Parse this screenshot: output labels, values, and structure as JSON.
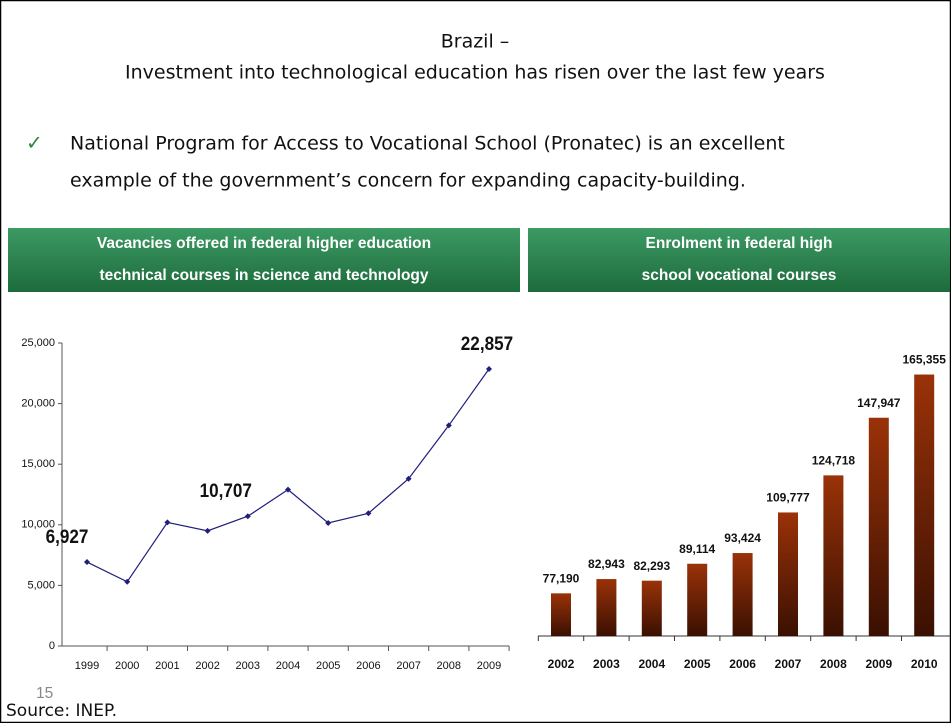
{
  "header": {
    "title_lines": [
      "Brazil –",
      "Investment into technological education has risen over the last few years"
    ]
  },
  "bullet": {
    "lines": [
      "National Program for Access to Vocational School (Pronatec) is an excellent",
      "example of the government’s concern for expanding capacity-building."
    ]
  },
  "chart_data": [
    {
      "type": "line",
      "title": "Vacancies offered in federal higher education technical courses in science and technology",
      "categories": [
        "1999",
        "2000",
        "2001",
        "2002",
        "2003",
        "2004",
        "2005",
        "2006",
        "2007",
        "2008",
        "2009"
      ],
      "values": [
        6927,
        5300,
        10200,
        9500,
        10707,
        12900,
        10150,
        10950,
        13800,
        18200,
        22857
      ],
      "value_labels": [
        "6,927",
        null,
        null,
        null,
        "10,707",
        null,
        null,
        null,
        null,
        null,
        "22,857"
      ],
      "color": "#1f1f7a",
      "ylim": [
        0,
        25000
      ],
      "yticks": [
        0,
        {
          "value": 5000,
          "label": "5,000"
        },
        {
          "value": 10000,
          "label": "10,000"
        },
        {
          "value": 15000,
          "label": "15,000"
        },
        {
          "value": 20000,
          "label": "20,000"
        },
        {
          "value": 25000,
          "label": "25,000"
        }
      ]
    },
    {
      "type": "bar",
      "title": "Enrolment in federal high school vocational courses",
      "categories": [
        "2002",
        "2003",
        "2004",
        "2005",
        "2006",
        "2007",
        "2008",
        "2009",
        "2010"
      ],
      "values": [
        77190,
        82943,
        82293,
        89114,
        93424,
        109777,
        124718,
        147947,
        165355
      ],
      "value_labels": [
        "77,190",
        "82,943",
        "82,293",
        "89,114",
        "93,424",
        "109,777",
        "124,718",
        "147,947",
        "165,355"
      ],
      "color": "#9a3208",
      "ylim": [
        60000,
        170000
      ]
    }
  ],
  "footer": {
    "page_number": "15",
    "source": "Source: INEP."
  }
}
